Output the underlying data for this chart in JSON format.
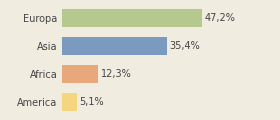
{
  "categories": [
    "Europa",
    "Asia",
    "Africa",
    "America"
  ],
  "values": [
    47.2,
    35.4,
    12.3,
    5.1
  ],
  "labels": [
    "47,2%",
    "35,4%",
    "12,3%",
    "5,1%"
  ],
  "bar_colors": [
    "#b5c98e",
    "#7a9bbf",
    "#e8a87c",
    "#f5d580"
  ],
  "background_color": "#f0ece0",
  "xlim": [
    0,
    62
  ],
  "bar_height": 0.65,
  "label_fontsize": 7,
  "tick_fontsize": 7
}
